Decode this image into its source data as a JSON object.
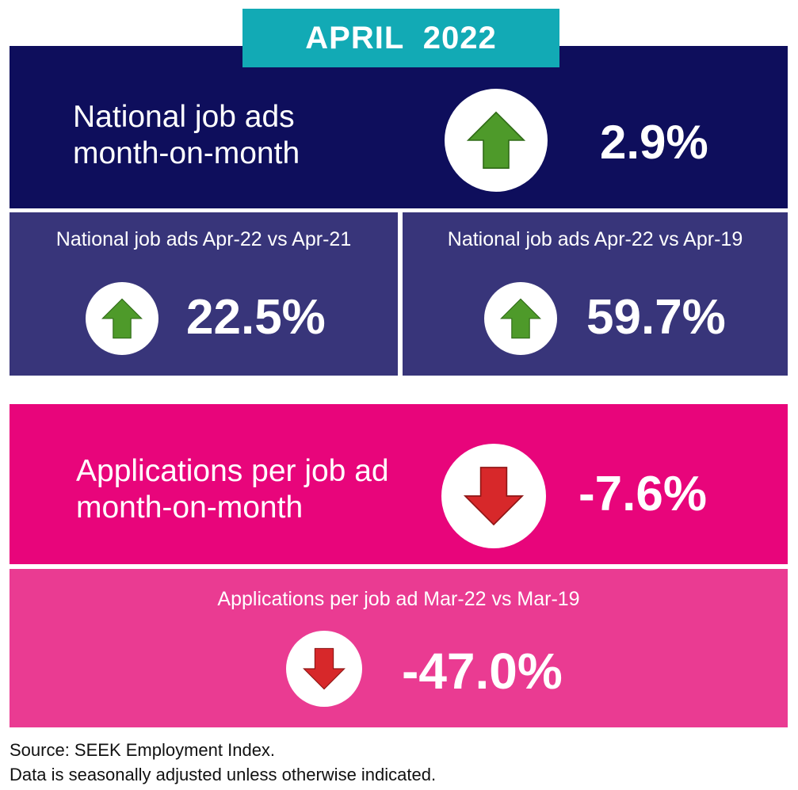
{
  "banner": {
    "title": "APRIL  2022"
  },
  "job_ads_mom": {
    "label_line1": "National job ads",
    "label_line2": "month-on-month",
    "value": "2.9%",
    "direction": "up"
  },
  "job_ads_yoy": {
    "label": "National job ads Apr-22 vs Apr-21",
    "value": "22.5%",
    "direction": "up"
  },
  "job_ads_vs_2019": {
    "label": "National job ads Apr-22 vs Apr-19",
    "value": "59.7%",
    "direction": "up"
  },
  "applications_mom": {
    "label_line1": "Applications per job ad",
    "label_line2": "month-on-month",
    "value": "-7.6%",
    "direction": "down"
  },
  "applications_vs_2019": {
    "label": "Applications per job ad Mar-22 vs Mar-19",
    "value": "-47.0%",
    "direction": "down"
  },
  "footer": {
    "source": "Source: SEEK Employment Index.",
    "note": "Data is seasonally adjusted unless otherwise indicated."
  },
  "colors": {
    "teal": "#12aab5",
    "navy": "#0e0e5c",
    "indigo": "#38357a",
    "magenta": "#e8057b",
    "pink": "#ea3b92",
    "up_arrow": "#4e9a2a",
    "down_arrow": "#d7282a"
  },
  "icons": {
    "up": "arrow-up-icon",
    "down": "arrow-down-icon"
  }
}
